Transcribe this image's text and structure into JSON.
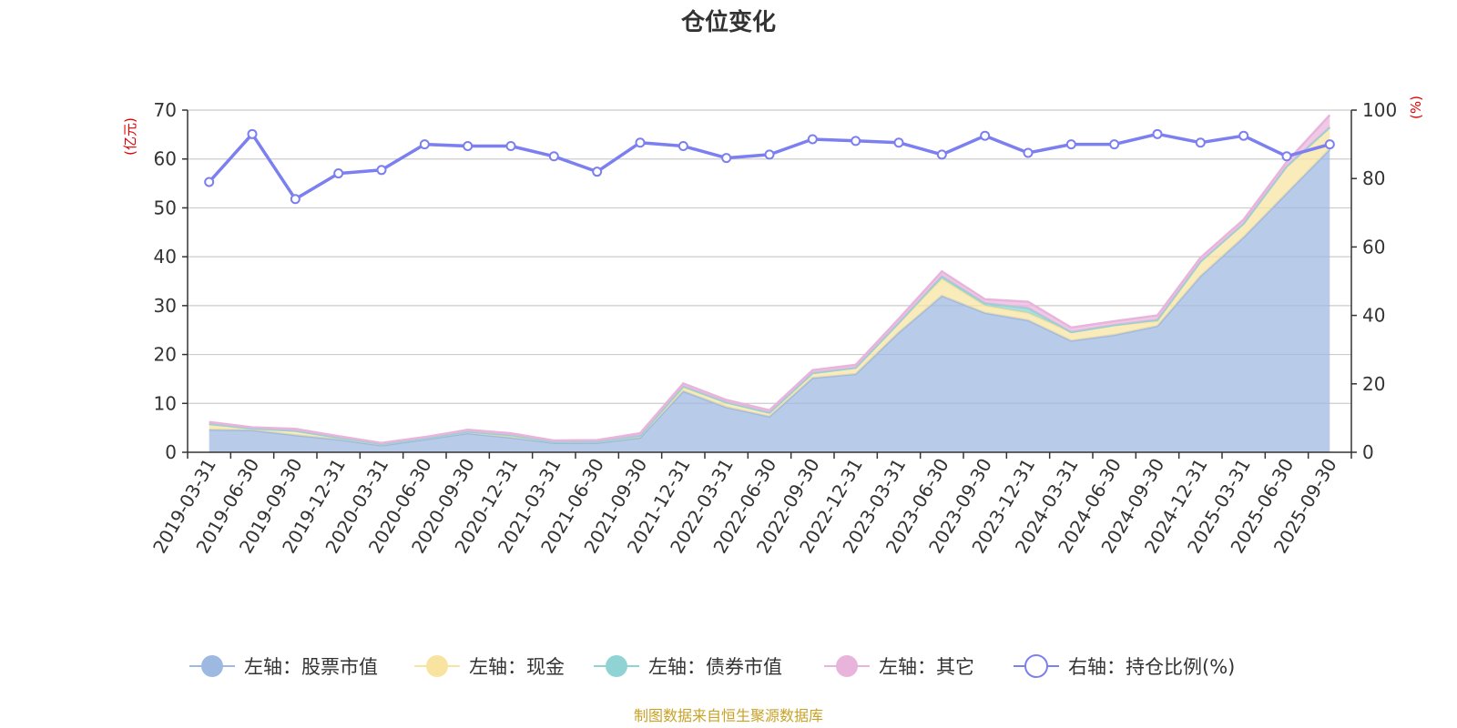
{
  "chart_data": {
    "type": "area",
    "title": "仓位变化",
    "source": "制图数据来自恒生聚源数据库",
    "left_axis": {
      "unit": "(亿元)",
      "ylim": [
        0,
        70
      ],
      "ticks": [
        0,
        10,
        20,
        30,
        40,
        50,
        60,
        70
      ]
    },
    "right_axis": {
      "unit": "(%)",
      "ylim": [
        0,
        100
      ],
      "ticks": [
        0,
        20,
        40,
        60,
        80,
        100
      ]
    },
    "categories": [
      "2019-03-31",
      "2019-06-30",
      "2019-09-30",
      "2019-12-31",
      "2020-03-31",
      "2020-06-30",
      "2020-09-30",
      "2020-12-31",
      "2021-03-31",
      "2021-06-30",
      "2021-09-30",
      "2021-12-31",
      "2022-03-31",
      "2022-06-30",
      "2022-09-30",
      "2022-12-31",
      "2023-03-31",
      "2023-06-30",
      "2023-09-30",
      "2023-12-31",
      "2024-03-31",
      "2024-06-30",
      "2024-09-30",
      "2024-12-31",
      "2025-03-31",
      "2025-06-30",
      "2025-09-30"
    ],
    "series": [
      {
        "name": "左轴：股票市值",
        "axis": "left",
        "type": "area",
        "color": "#9db8e1",
        "values": [
          4.6,
          4.5,
          3.5,
          2.6,
          1.4,
          2.6,
          3.9,
          3.0,
          1.9,
          1.9,
          3.0,
          12.5,
          9.2,
          7.3,
          15.2,
          16.0,
          24.5,
          32.0,
          28.5,
          27.0,
          22.8,
          24.0,
          25.8,
          36.0,
          44.0,
          53.0,
          62.0
        ]
      },
      {
        "name": "左轴：现金",
        "axis": "left",
        "type": "area",
        "color": "#f8e3a1",
        "values": [
          1.0,
          0.4,
          0.9,
          0.4,
          0.3,
          0.2,
          0.3,
          0.5,
          0.2,
          0.3,
          0.4,
          0.8,
          1.0,
          0.8,
          1.0,
          1.3,
          2.0,
          3.5,
          1.5,
          1.5,
          1.8,
          2.0,
          1.0,
          3.0,
          2.8,
          5.5,
          4.5
        ]
      },
      {
        "name": "左轴：债券市值",
        "axis": "left",
        "type": "area",
        "color": "#8fd3d4",
        "values": [
          0.2,
          0.0,
          0.0,
          0.0,
          0.0,
          0.0,
          0.0,
          0.0,
          0.0,
          0.0,
          0.0,
          0.2,
          0.0,
          0.0,
          0.0,
          0.0,
          0.0,
          0.5,
          0.5,
          1.0,
          0.0,
          0.0,
          0.3,
          0.0,
          0.0,
          0.0,
          0.0
        ]
      },
      {
        "name": "左轴：其它",
        "axis": "left",
        "type": "area",
        "color": "#e9b4dc",
        "values": [
          0.4,
          0.2,
          0.4,
          0.3,
          0.2,
          0.3,
          0.4,
          0.4,
          0.3,
          0.3,
          0.5,
          0.6,
          0.5,
          0.5,
          0.6,
          0.6,
          0.8,
          1.0,
          0.8,
          1.3,
          0.9,
          0.8,
          0.9,
          0.8,
          0.8,
          0.9,
          2.5
        ]
      },
      {
        "name": "右轴：持仓比例(%)",
        "axis": "right",
        "type": "line",
        "color": "#7b7fef",
        "values": [
          79.0,
          93.0,
          74.0,
          81.5,
          82.5,
          90.0,
          89.5,
          89.5,
          86.5,
          82.0,
          90.5,
          89.5,
          86.0,
          87.0,
          91.5,
          91.0,
          90.5,
          87.0,
          92.5,
          87.5,
          90.0,
          90.0,
          93.0,
          90.5,
          92.5,
          86.5,
          90.0
        ]
      }
    ]
  }
}
